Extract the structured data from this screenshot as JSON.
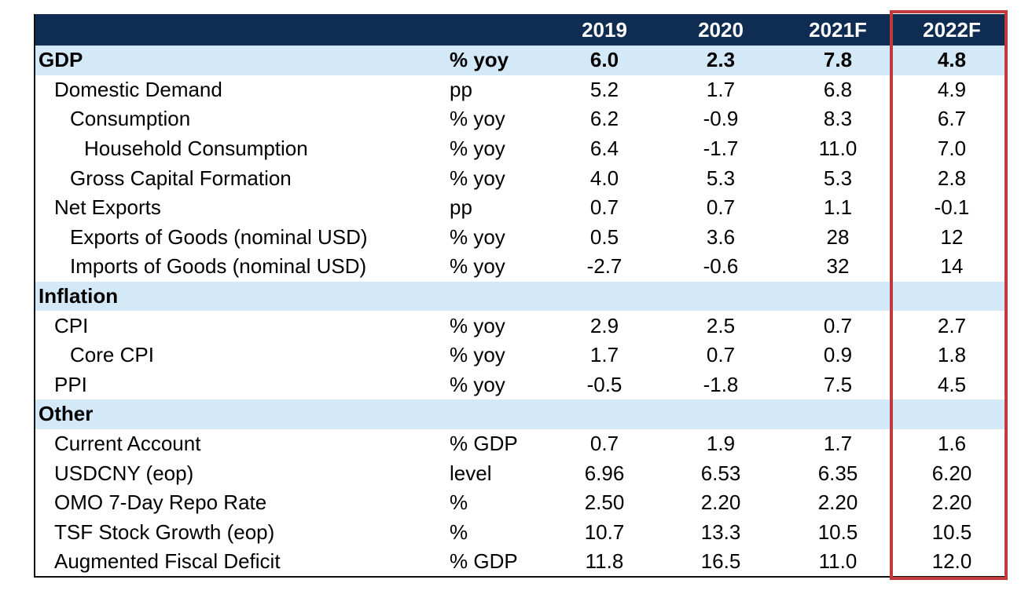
{
  "header": {
    "years": [
      "2019",
      "2020",
      "2021F",
      "2022F"
    ]
  },
  "rows": [
    {
      "label": "GDP",
      "unit": "% yoy",
      "values": [
        "6.0",
        "2.3",
        "7.8",
        "4.8"
      ]
    },
    {
      "label": "Domestic Demand",
      "unit": "pp",
      "values": [
        "5.2",
        "1.7",
        "6.8",
        "4.9"
      ]
    },
    {
      "label": "Consumption",
      "unit": "% yoy",
      "values": [
        "6.2",
        "-0.9",
        "8.3",
        "6.7"
      ]
    },
    {
      "label": "Household Consumption",
      "unit": "% yoy",
      "values": [
        "6.4",
        "-1.7",
        "11.0",
        "7.0"
      ]
    },
    {
      "label": "Gross Capital Formation",
      "unit": "% yoy",
      "values": [
        "4.0",
        "5.3",
        "5.3",
        "2.8"
      ]
    },
    {
      "label": "Net Exports",
      "unit": "pp",
      "values": [
        "0.7",
        "0.7",
        "1.1",
        "-0.1"
      ]
    },
    {
      "label": "Exports of Goods (nominal USD)",
      "unit": "% yoy",
      "values": [
        "0.5",
        "3.6",
        "28",
        "12"
      ]
    },
    {
      "label": "Imports of Goods (nominal USD)",
      "unit": "% yoy",
      "values": [
        "-2.7",
        "-0.6",
        "32",
        "14"
      ]
    },
    {
      "label": "Inflation",
      "unit": "",
      "values": [
        "",
        "",
        "",
        ""
      ]
    },
    {
      "label": "CPI",
      "unit": "% yoy",
      "values": [
        "2.9",
        "2.5",
        "0.7",
        "2.7"
      ]
    },
    {
      "label": "Core CPI",
      "unit": "% yoy",
      "values": [
        "1.7",
        "0.7",
        "0.9",
        "1.8"
      ]
    },
    {
      "label": "PPI",
      "unit": "% yoy",
      "values": [
        "-0.5",
        "-1.8",
        "7.5",
        "4.5"
      ]
    },
    {
      "label": "Other",
      "unit": "",
      "values": [
        "",
        "",
        "",
        ""
      ]
    },
    {
      "label": "Current Account",
      "unit": "% GDP",
      "values": [
        "0.7",
        "1.9",
        "1.7",
        "1.6"
      ]
    },
    {
      "label": "USDCNY (eop)",
      "unit": "level",
      "values": [
        "6.96",
        "6.53",
        "6.35",
        "6.20"
      ]
    },
    {
      "label": "OMO 7-Day Repo Rate",
      "unit": "%",
      "values": [
        "2.50",
        "2.20",
        "2.20",
        "2.20"
      ]
    },
    {
      "label": "TSF Stock Growth (eop)",
      "unit": "%",
      "values": [
        "10.7",
        "13.3",
        "10.5",
        "10.5"
      ]
    },
    {
      "label": "Augmented Fiscal Deficit",
      "unit": "% GDP",
      "values": [
        "11.8",
        "16.5",
        "11.0",
        "12.0"
      ]
    }
  ],
  "colors": {
    "header_bg": "#0f2d52",
    "section_bg": "#d4e9f8",
    "highlight_border": "#c0393b"
  }
}
